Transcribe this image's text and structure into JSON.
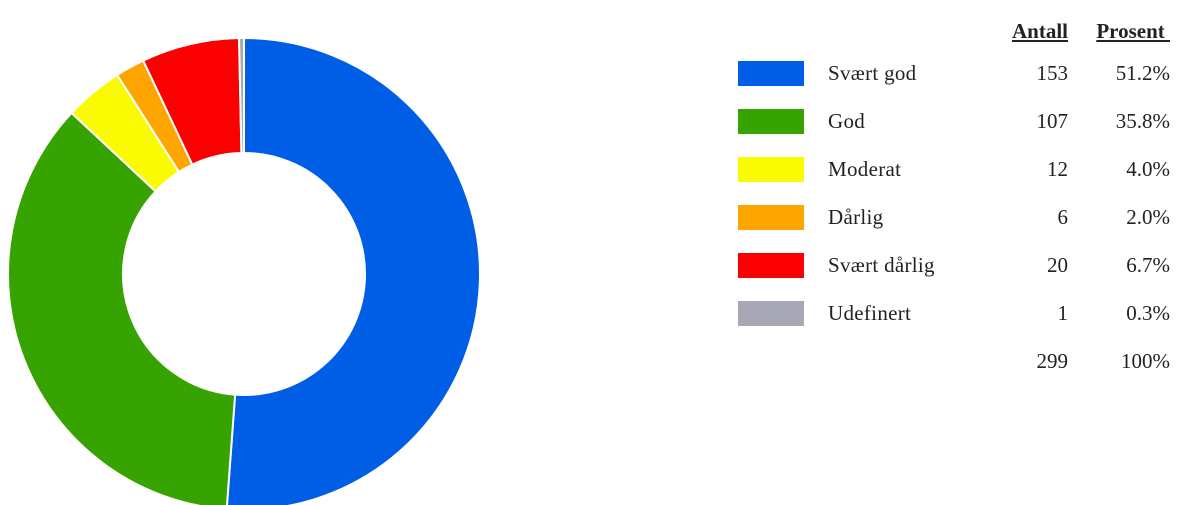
{
  "chart_data": {
    "type": "pie",
    "variant": "donut",
    "categories": [
      "Svært god",
      "God",
      "Moderat",
      "Dårlig",
      "Svært dårlig",
      "Udefinert"
    ],
    "values": [
      153,
      107,
      12,
      6,
      20,
      1
    ],
    "percentages": [
      "51.2%",
      "35.8%",
      "4.0%",
      "2.0%",
      "6.7%",
      "0.3%"
    ],
    "colors": [
      "#005ee6",
      "#37a300",
      "#fafa00",
      "#ffa500",
      "#fa0000",
      "#a8a7b5"
    ],
    "total": 299,
    "total_percent": "100%",
    "legend_placement": "right",
    "title": ""
  },
  "legend": {
    "header_count": "Antall",
    "header_percent": "Prosent "
  }
}
